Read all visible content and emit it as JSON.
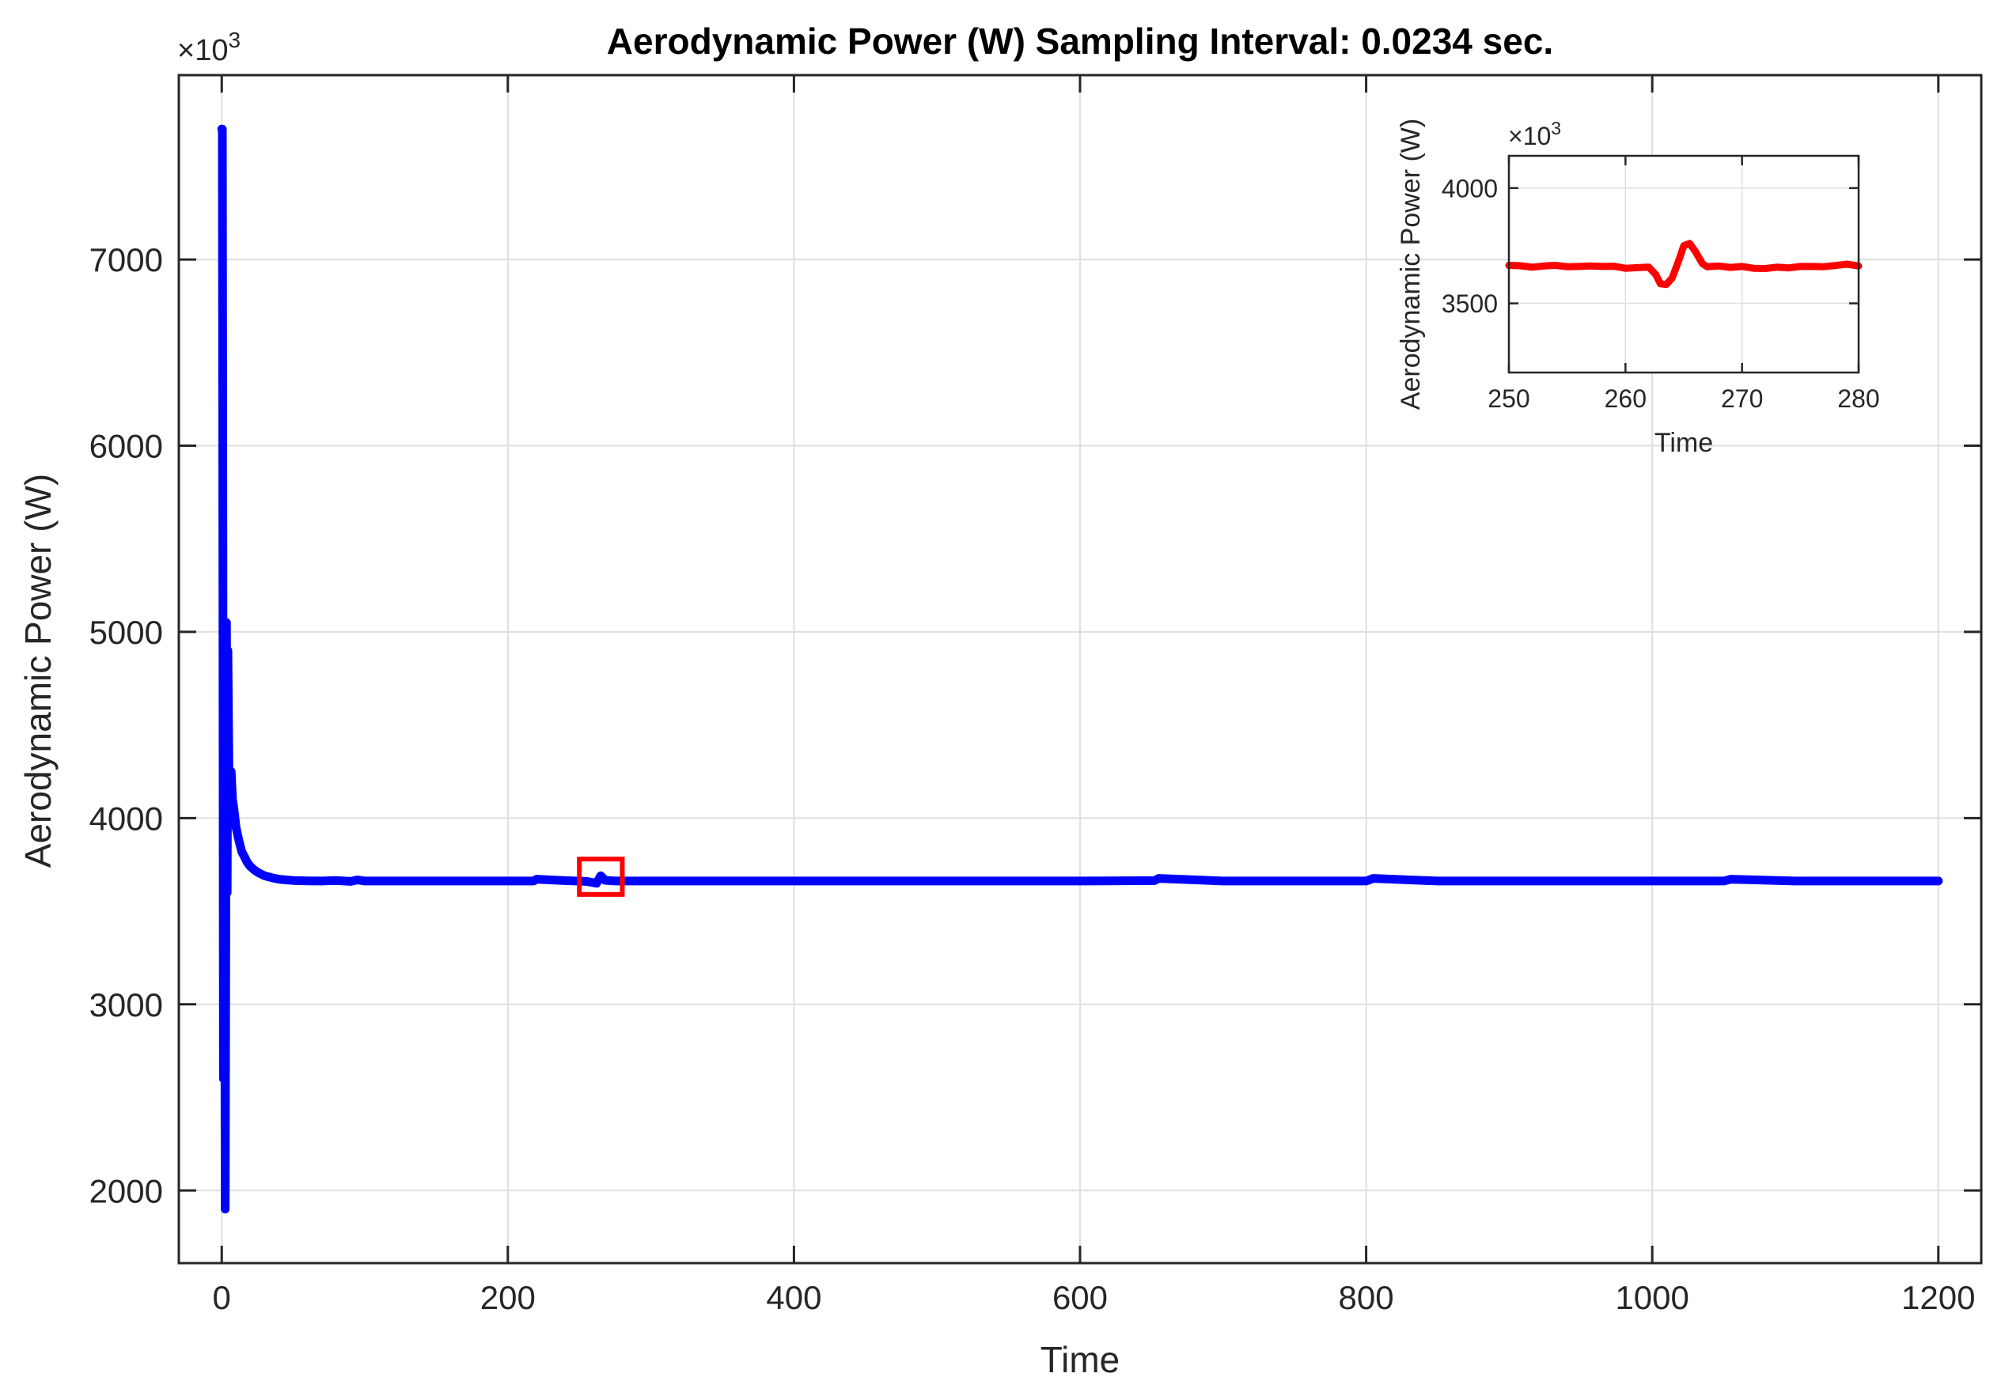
{
  "chart_data": [
    {
      "type": "line",
      "title": "Aerodynamic Power (W) Sampling Interval: 0.0234 sec.",
      "xlabel": "Time",
      "ylabel": "Aerodynamic Power (W)",
      "y_exponent_label": "×10",
      "y_exponent_power": "3",
      "xlim": [
        -30,
        1230
      ],
      "ylim": [
        1610,
        7990
      ],
      "xticks": [
        0,
        200,
        400,
        600,
        800,
        1000,
        1200
      ],
      "yticks": [
        2000,
        3000,
        4000,
        5000,
        6000,
        7000
      ],
      "xtick_labels": [
        "0",
        "200",
        "400",
        "600",
        "800",
        "1000",
        "1200"
      ],
      "ytick_labels": [
        "2000",
        "3000",
        "4000",
        "5000",
        "6000",
        "7000"
      ],
      "grid": true,
      "series": [
        {
          "color": "#0000ff",
          "x": [
            0,
            0.4,
            0.8,
            1.2,
            1.8,
            2.4,
            2.9,
            3.3,
            3.8,
            4.3,
            5,
            5.8,
            6.6,
            7.5,
            8.5,
            10,
            12,
            14,
            16,
            18,
            20,
            23,
            26,
            30,
            35,
            40,
            45,
            50,
            60,
            70,
            80,
            90,
            95,
            100,
            110,
            120,
            140,
            160,
            180,
            200,
            218,
            220,
            240,
            255,
            262,
            265,
            268,
            275,
            300,
            350,
            400,
            450,
            500,
            550,
            600,
            652,
            655,
            700,
            750,
            800,
            805,
            850,
            900,
            950,
            1000,
            1050,
            1055,
            1100,
            1150,
            1200
          ],
          "values": [
            7700,
            7700,
            5400,
            2600,
            4800,
            1900,
            3600,
            5050,
            3600,
            4900,
            4250,
            4200,
            4250,
            4100,
            4050,
            3950,
            3880,
            3820,
            3790,
            3760,
            3740,
            3720,
            3705,
            3690,
            3680,
            3672,
            3668,
            3665,
            3663,
            3662,
            3665,
            3660,
            3668,
            3662,
            3662,
            3662,
            3662,
            3662,
            3662,
            3662,
            3662,
            3672,
            3664,
            3660,
            3650,
            3690,
            3666,
            3662,
            3662,
            3662,
            3662,
            3662,
            3662,
            3662,
            3662,
            3664,
            3676,
            3662,
            3662,
            3662,
            3676,
            3662,
            3662,
            3662,
            3662,
            3662,
            3672,
            3662,
            3662,
            3662
          ]
        }
      ],
      "highlight_box": {
        "x_range": [
          250,
          280
        ],
        "y_range": [
          3590,
          3780
        ],
        "color": "#ff0000"
      }
    },
    {
      "type": "line",
      "title": "",
      "xlabel": "Time",
      "ylabel": "Aerodynamic Power (W)",
      "y_exponent_label": "×10",
      "y_exponent_power": "3",
      "xlim": [
        250,
        280
      ],
      "ylim": [
        3200,
        4140
      ],
      "xticks": [
        250,
        260,
        270,
        280
      ],
      "yticks": [
        3500,
        4000
      ],
      "xtick_labels": [
        "250",
        "260",
        "270",
        "280"
      ],
      "ytick_labels": [
        "3500",
        "4000"
      ],
      "grid": true,
      "series": [
        {
          "color": "#ff0000",
          "x": [
            250,
            251,
            252,
            253,
            254,
            255,
            256,
            257,
            258,
            259,
            260,
            261,
            262,
            262.6,
            263,
            263.5,
            264,
            264.6,
            265,
            265.5,
            266,
            266.6,
            267,
            268,
            269,
            270,
            271,
            272,
            273,
            274,
            275,
            276,
            277,
            278,
            279,
            280
          ],
          "values": [
            3665,
            3663,
            3657,
            3662,
            3665,
            3659,
            3660,
            3662,
            3660,
            3661,
            3652,
            3655,
            3657,
            3625,
            3585,
            3582,
            3610,
            3690,
            3750,
            3760,
            3725,
            3672,
            3659,
            3662,
            3656,
            3660,
            3652,
            3651,
            3657,
            3654,
            3660,
            3660,
            3659,
            3664,
            3670,
            3662
          ]
        }
      ]
    }
  ]
}
